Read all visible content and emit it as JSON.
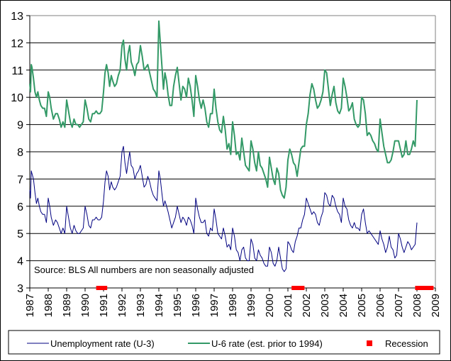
{
  "chart_data": {
    "type": "line",
    "title": "",
    "xlabel": "",
    "ylabel": "",
    "ylim": [
      3,
      13
    ],
    "xlim": [
      1987,
      2009
    ],
    "y_ticks": [
      3,
      4,
      5,
      6,
      7,
      8,
      9,
      10,
      11,
      12,
      13
    ],
    "x_tick_labels": [
      "1987",
      "1988",
      "1989",
      "1990",
      "1991",
      "1992",
      "1993",
      "1994",
      "1995",
      "1996",
      "1997",
      "1998",
      "1999",
      "2000",
      "2001",
      "2002",
      "2003",
      "2004",
      "2005",
      "2006",
      "2007",
      "2008",
      "2009"
    ],
    "grid": "horizontal",
    "legend_position": "bottom",
    "annotation": "Source: BLS    All numbers are non seasonally adjusted",
    "series": [
      {
        "name": "Unemployment rate (U-3)",
        "color": "#000080",
        "x": [
          1987.0,
          1987.04,
          1987.08,
          1987.12,
          1987.2,
          1987.28,
          1987.36,
          1987.44,
          1987.52,
          1987.6,
          1987.7,
          1987.8,
          1987.9,
          1988.0,
          1988.08,
          1988.16,
          1988.28,
          1988.4,
          1988.5,
          1988.6,
          1988.7,
          1988.8,
          1988.9,
          1989.0,
          1989.1,
          1989.2,
          1989.3,
          1989.4,
          1989.5,
          1989.6,
          1989.7,
          1989.8,
          1989.9,
          1990.0,
          1990.1,
          1990.2,
          1990.3,
          1990.4,
          1990.5,
          1990.6,
          1990.7,
          1990.8,
          1990.9,
          1991.0,
          1991.08,
          1991.16,
          1991.25,
          1991.33,
          1991.42,
          1991.5,
          1991.6,
          1991.7,
          1991.8,
          1991.9,
          1992.0,
          1992.08,
          1992.16,
          1992.25,
          1992.33,
          1992.42,
          1992.5,
          1992.6,
          1992.7,
          1992.8,
          1992.9,
          1993.0,
          1993.1,
          1993.2,
          1993.3,
          1993.4,
          1993.5,
          1993.6,
          1993.7,
          1993.8,
          1993.9,
          1994.0,
          1994.08,
          1994.16,
          1994.25,
          1994.33,
          1994.42,
          1994.5,
          1994.6,
          1994.7,
          1994.8,
          1994.9,
          1995.0,
          1995.1,
          1995.2,
          1995.3,
          1995.4,
          1995.5,
          1995.6,
          1995.7,
          1995.8,
          1995.9,
          1996.0,
          1996.1,
          1996.2,
          1996.3,
          1996.4,
          1996.5,
          1996.6,
          1996.7,
          1996.8,
          1996.9,
          1997.0,
          1997.1,
          1997.2,
          1997.3,
          1997.4,
          1997.5,
          1997.6,
          1997.7,
          1997.8,
          1997.9,
          1998.0,
          1998.1,
          1998.2,
          1998.3,
          1998.4,
          1998.5,
          1998.6,
          1998.7,
          1998.8,
          1998.9,
          1999.0,
          1999.1,
          1999.2,
          1999.3,
          1999.4,
          1999.5,
          1999.6,
          1999.7,
          1999.8,
          1999.9,
          2000.0,
          2000.1,
          2000.2,
          2000.3,
          2000.4,
          2000.5,
          2000.6,
          2000.7,
          2000.8,
          2000.9,
          2001.0,
          2001.1,
          2001.2,
          2001.3,
          2001.4,
          2001.5,
          2001.6,
          2001.7,
          2001.8,
          2001.9,
          2002.0,
          2002.1,
          2002.2,
          2002.3,
          2002.4,
          2002.5,
          2002.6,
          2002.7,
          2002.8,
          2002.9,
          2003.0,
          2003.1,
          2003.2,
          2003.3,
          2003.4,
          2003.5,
          2003.6,
          2003.7,
          2003.8,
          2003.9,
          2004.0,
          2004.1,
          2004.2,
          2004.3,
          2004.4,
          2004.5,
          2004.6,
          2004.7,
          2004.8,
          2004.9,
          2005.0,
          2005.1,
          2005.2,
          2005.3,
          2005.4,
          2005.5,
          2005.6,
          2005.7,
          2005.8,
          2005.9,
          2006.0,
          2006.1,
          2006.2,
          2006.3,
          2006.4,
          2006.5,
          2006.6,
          2006.7,
          2006.8,
          2006.9,
          2007.0,
          2007.1,
          2007.2,
          2007.3,
          2007.4,
          2007.5,
          2007.6,
          2007.7,
          2007.8,
          2007.9,
          2008.0
        ],
        "values": [
          6.6,
          6.3,
          7.3,
          7.2,
          7.0,
          6.5,
          6.1,
          6.3,
          6.0,
          5.8,
          5.7,
          5.7,
          5.4,
          6.3,
          6.0,
          5.6,
          5.3,
          5.5,
          5.4,
          5.2,
          5.0,
          5.2,
          5.0,
          6.0,
          5.6,
          5.2,
          5.0,
          5.3,
          5.1,
          5.0,
          5.0,
          5.1,
          5.2,
          6.0,
          5.7,
          5.3,
          5.2,
          5.5,
          5.5,
          5.6,
          5.5,
          5.5,
          5.6,
          6.2,
          6.9,
          7.3,
          7.1,
          6.6,
          6.9,
          6.7,
          6.6,
          6.7,
          6.9,
          7.1,
          8.0,
          8.2,
          7.6,
          7.2,
          7.6,
          8.0,
          7.5,
          7.4,
          7.0,
          7.2,
          7.3,
          7.5,
          7.1,
          6.7,
          6.8,
          7.1,
          6.9,
          6.6,
          6.4,
          6.3,
          6.2,
          7.3,
          7.0,
          6.5,
          6.0,
          6.2,
          6.0,
          5.8,
          5.5,
          5.2,
          5.4,
          5.6,
          6.0,
          5.7,
          5.4,
          5.6,
          5.5,
          5.3,
          5.6,
          5.5,
          5.3,
          5.0,
          6.3,
          5.9,
          5.6,
          5.4,
          5.4,
          5.5,
          5.0,
          4.9,
          5.2,
          5.1,
          5.9,
          5.5,
          5.0,
          4.9,
          4.8,
          5.2,
          4.9,
          4.5,
          4.6,
          4.4,
          5.2,
          4.9,
          4.4,
          4.3,
          4.0,
          4.4,
          4.5,
          4.1,
          4.0,
          4.0,
          4.8,
          4.6,
          4.1,
          4.0,
          4.4,
          4.2,
          4.1,
          3.9,
          3.8,
          3.8,
          4.5,
          4.3,
          3.9,
          3.8,
          4.0,
          4.5,
          4.1,
          3.7,
          3.6,
          3.7,
          4.7,
          4.6,
          4.4,
          4.3,
          4.7,
          4.9,
          5.2,
          5.2,
          5.5,
          5.7,
          6.3,
          6.1,
          5.9,
          5.7,
          5.8,
          5.7,
          5.4,
          5.3,
          5.6,
          5.8,
          6.5,
          6.4,
          6.1,
          6.0,
          6.4,
          6.3,
          6.0,
          5.8,
          5.7,
          5.4,
          6.3,
          6.0,
          5.9,
          5.5,
          5.3,
          5.2,
          5.4,
          5.2,
          5.2,
          5.1,
          5.7,
          5.9,
          5.4,
          5.0,
          5.1,
          5.0,
          4.9,
          4.8,
          4.7,
          4.6,
          5.1,
          4.8,
          4.6,
          4.3,
          4.5,
          4.9,
          4.5,
          4.4,
          4.1,
          4.2,
          5.0,
          4.8,
          4.5,
          4.3,
          4.5,
          4.7,
          4.6,
          4.4,
          4.5,
          4.6,
          5.4
        ]
      },
      {
        "name": "U-6 rate (est. prior to 1994)",
        "color": "#339966",
        "x": [
          1987.0,
          1987.04,
          1987.08,
          1987.12,
          1987.2,
          1987.28,
          1987.36,
          1987.44,
          1987.52,
          1987.6,
          1987.7,
          1987.8,
          1987.9,
          1988.0,
          1988.08,
          1988.16,
          1988.28,
          1988.4,
          1988.5,
          1988.6,
          1988.7,
          1988.8,
          1988.9,
          1989.0,
          1989.1,
          1989.2,
          1989.3,
          1989.4,
          1989.5,
          1989.6,
          1989.7,
          1989.8,
          1989.9,
          1990.0,
          1990.1,
          1990.2,
          1990.3,
          1990.4,
          1990.5,
          1990.6,
          1990.7,
          1990.8,
          1990.9,
          1991.0,
          1991.08,
          1991.16,
          1991.25,
          1991.33,
          1991.42,
          1991.5,
          1991.6,
          1991.7,
          1991.8,
          1991.9,
          1992.0,
          1992.08,
          1992.16,
          1992.25,
          1992.33,
          1992.42,
          1992.5,
          1992.6,
          1992.7,
          1992.8,
          1992.9,
          1993.0,
          1993.1,
          1993.2,
          1993.3,
          1993.4,
          1993.5,
          1993.6,
          1993.7,
          1993.8,
          1993.9,
          1994.0,
          1994.08,
          1994.16,
          1994.25,
          1994.33,
          1994.42,
          1994.5,
          1994.6,
          1994.7,
          1994.8,
          1994.9,
          1995.0,
          1995.1,
          1995.2,
          1995.3,
          1995.4,
          1995.5,
          1995.6,
          1995.7,
          1995.8,
          1995.9,
          1996.0,
          1996.1,
          1996.2,
          1996.3,
          1996.4,
          1996.5,
          1996.6,
          1996.7,
          1996.8,
          1996.9,
          1997.0,
          1997.1,
          1997.2,
          1997.3,
          1997.4,
          1997.5,
          1997.6,
          1997.7,
          1997.8,
          1997.9,
          1998.0,
          1998.1,
          1998.2,
          1998.3,
          1998.4,
          1998.5,
          1998.6,
          1998.7,
          1998.8,
          1998.9,
          1999.0,
          1999.1,
          1999.2,
          1999.3,
          1999.4,
          1999.5,
          1999.6,
          1999.7,
          1999.8,
          1999.9,
          2000.0,
          2000.1,
          2000.2,
          2000.3,
          2000.4,
          2000.5,
          2000.6,
          2000.7,
          2000.8,
          2000.9,
          2001.0,
          2001.1,
          2001.2,
          2001.3,
          2001.4,
          2001.5,
          2001.6,
          2001.7,
          2001.8,
          2001.9,
          2002.0,
          2002.1,
          2002.2,
          2002.3,
          2002.4,
          2002.5,
          2002.6,
          2002.7,
          2002.8,
          2002.9,
          2003.0,
          2003.1,
          2003.2,
          2003.3,
          2003.4,
          2003.5,
          2003.6,
          2003.7,
          2003.8,
          2003.9,
          2004.0,
          2004.1,
          2004.2,
          2004.3,
          2004.4,
          2004.5,
          2004.6,
          2004.7,
          2004.8,
          2004.9,
          2005.0,
          2005.1,
          2005.2,
          2005.3,
          2005.4,
          2005.5,
          2005.6,
          2005.7,
          2005.8,
          2005.9,
          2006.0,
          2006.1,
          2006.2,
          2006.3,
          2006.4,
          2006.5,
          2006.6,
          2006.7,
          2006.8,
          2006.9,
          2007.0,
          2007.1,
          2007.2,
          2007.3,
          2007.4,
          2007.5,
          2007.6,
          2007.7,
          2007.8,
          2007.9,
          2008.0
        ],
        "values": [
          10.5,
          10.2,
          11.2,
          11.1,
          10.7,
          10.2,
          10.0,
          10.2,
          9.9,
          9.7,
          9.6,
          9.6,
          9.3,
          10.2,
          10.0,
          9.6,
          9.2,
          9.4,
          9.4,
          9.2,
          8.9,
          9.1,
          8.9,
          9.9,
          9.5,
          9.1,
          8.9,
          9.2,
          9.0,
          9.0,
          8.9,
          9.0,
          9.1,
          9.9,
          9.6,
          9.2,
          9.1,
          9.4,
          9.4,
          9.5,
          9.4,
          9.4,
          9.5,
          10.2,
          10.9,
          11.2,
          10.9,
          10.4,
          10.8,
          10.6,
          10.4,
          10.5,
          10.8,
          11.0,
          11.9,
          12.1,
          11.4,
          11.0,
          11.6,
          11.9,
          11.3,
          11.1,
          10.8,
          11.2,
          11.3,
          11.9,
          11.5,
          11.0,
          11.1,
          11.2,
          10.9,
          10.6,
          10.3,
          10.2,
          10.0,
          12.8,
          12.0,
          11.2,
          10.3,
          10.9,
          10.6,
          10.1,
          9.7,
          9.7,
          10.4,
          10.8,
          11.1,
          10.5,
          9.9,
          10.4,
          10.3,
          10.0,
          10.7,
          10.4,
          9.9,
          9.3,
          10.8,
          10.4,
          9.9,
          9.6,
          9.9,
          9.6,
          9.1,
          8.9,
          9.4,
          9.4,
          10.3,
          9.6,
          9.1,
          8.8,
          8.7,
          9.3,
          8.8,
          8.1,
          8.3,
          7.9,
          9.1,
          8.6,
          7.9,
          8.0,
          7.7,
          8.5,
          8.0,
          7.5,
          7.4,
          7.3,
          8.4,
          8.1,
          7.6,
          7.3,
          8.0,
          7.5,
          7.4,
          7.2,
          7.0,
          6.7,
          7.8,
          7.4,
          7.0,
          6.8,
          7.4,
          7.2,
          6.6,
          6.4,
          6.3,
          6.7,
          7.7,
          8.1,
          7.9,
          7.6,
          7.5,
          7.1,
          7.6,
          8.1,
          8.2,
          8.2,
          9.0,
          9.4,
          10.1,
          10.5,
          10.3,
          9.9,
          9.6,
          9.7,
          9.9,
          10.2,
          11.0,
          10.9,
          10.3,
          9.7,
          10.1,
          10.4,
          9.8,
          9.5,
          9.4,
          9.6,
          10.7,
          10.4,
          10.0,
          9.5,
          9.6,
          9.8,
          9.2,
          9.0,
          8.9,
          9.0,
          10.0,
          9.9,
          9.4,
          8.6,
          8.7,
          8.6,
          8.4,
          8.3,
          8.1,
          8.0,
          9.2,
          8.7,
          8.2,
          7.9,
          7.6,
          7.6,
          7.7,
          8.0,
          8.4,
          8.4,
          8.4,
          8.1,
          7.8,
          7.9,
          8.4,
          7.9,
          7.9,
          8.1,
          8.4,
          8.2,
          9.9
        ]
      }
    ],
    "recessions": [
      {
        "label": "Recession",
        "start": 1990.6,
        "end": 1991.2,
        "color": "#ff0000"
      },
      {
        "label": "Recession",
        "start": 2001.2,
        "end": 2001.9,
        "color": "#ff0000"
      },
      {
        "label": "Recession",
        "start": 2007.9,
        "end": 2008.9,
        "color": "#ff0000"
      }
    ],
    "legend": [
      {
        "label": "Unemployment rate (U-3)",
        "kind": "line",
        "color": "#000080"
      },
      {
        "label": "U-6 rate (est. prior to 1994)",
        "kind": "line",
        "color": "#339966"
      },
      {
        "label": "Recession",
        "kind": "square",
        "color": "#ff0000"
      }
    ]
  }
}
